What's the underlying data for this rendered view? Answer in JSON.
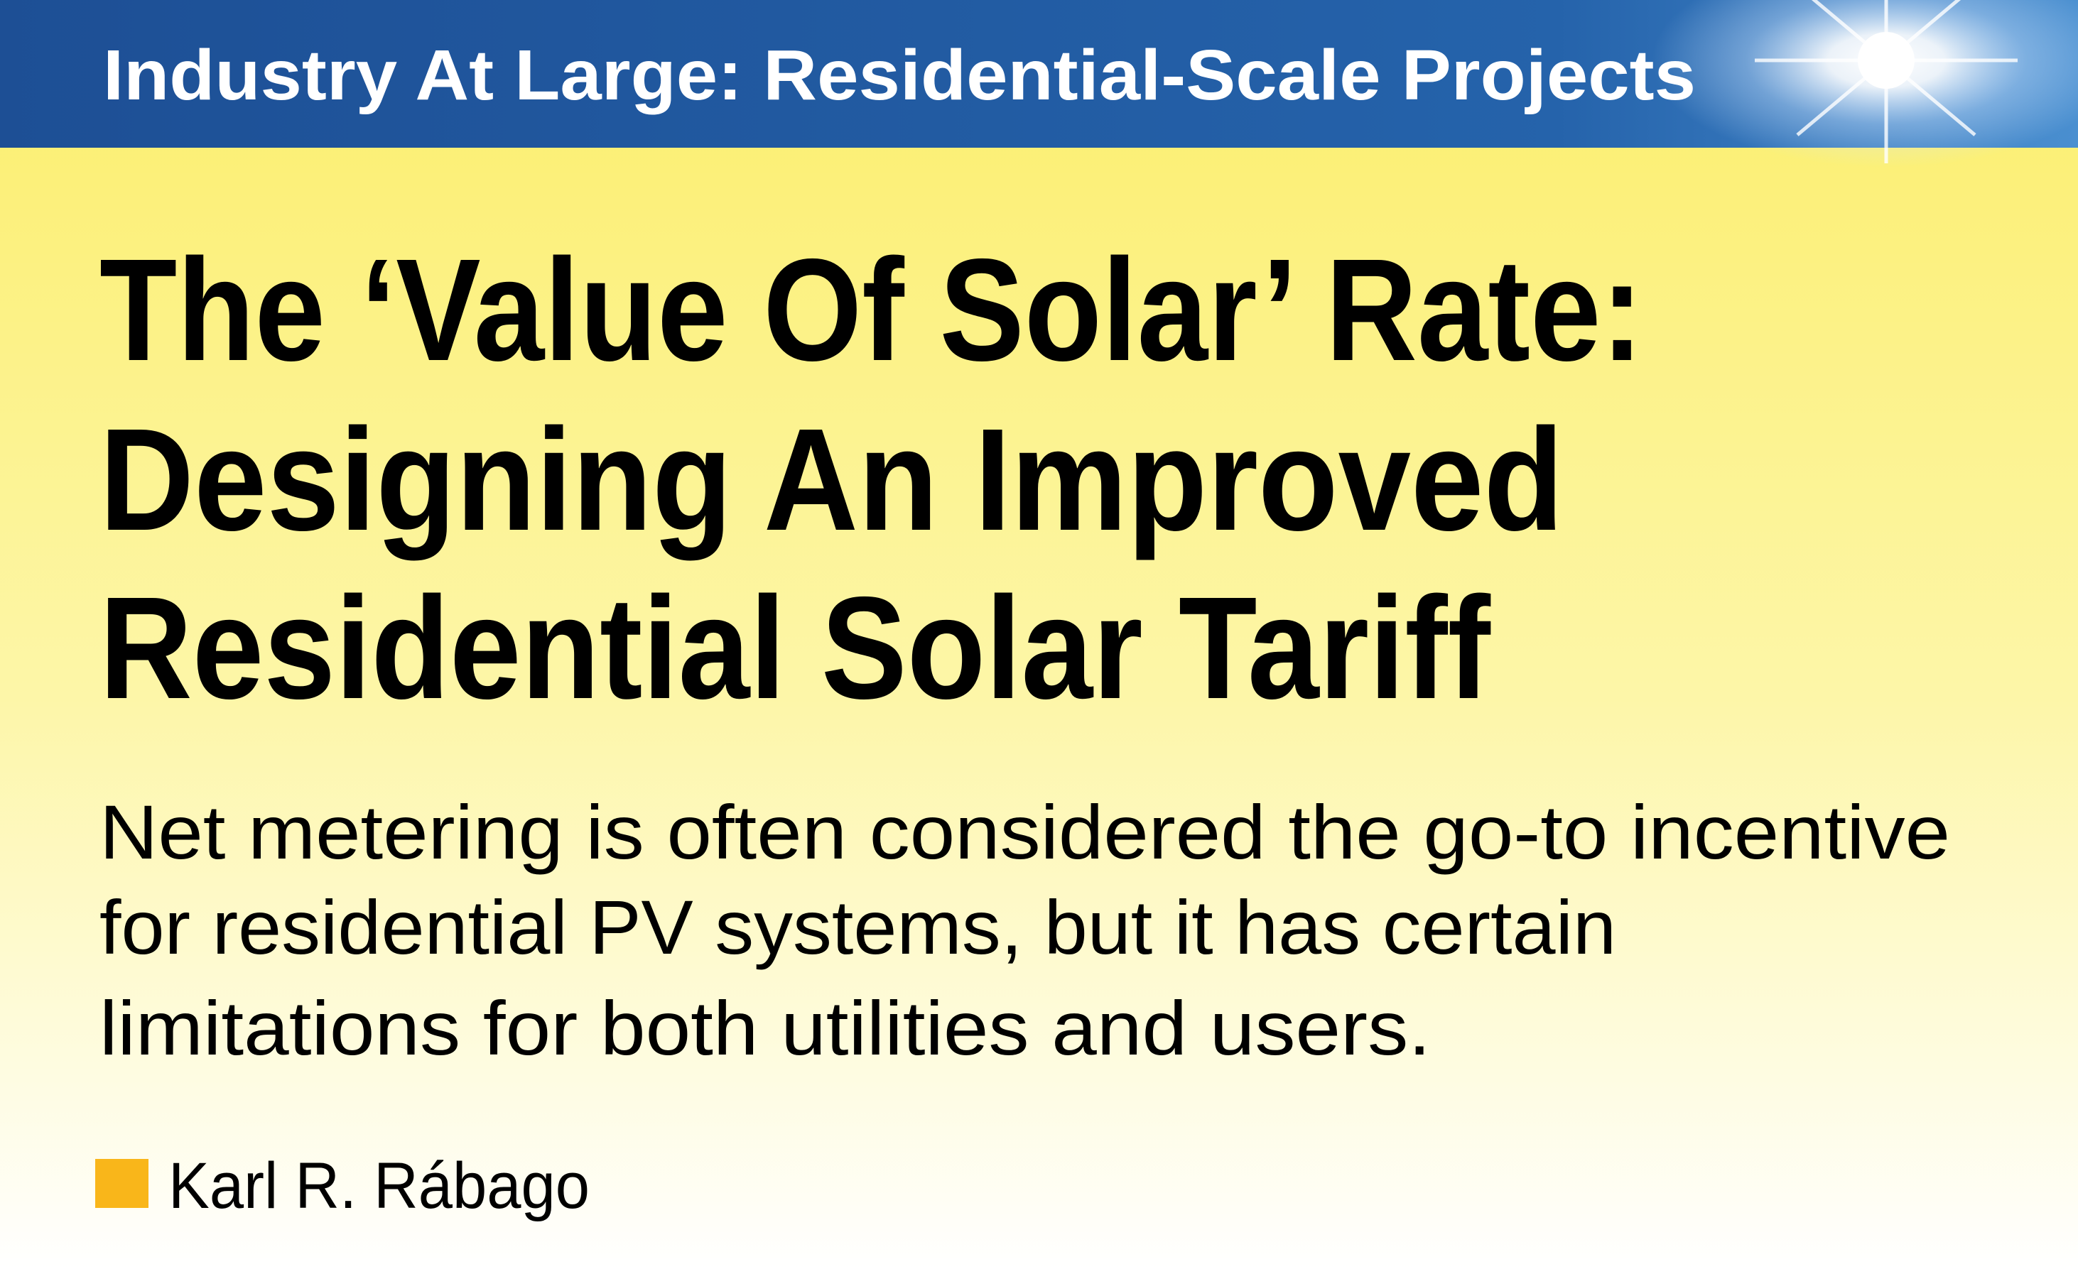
{
  "header": {
    "title": "Industry At Large: Residential-Scale Projects"
  },
  "article": {
    "title_lines": [
      "The ‘Value Of Solar’ Rate:",
      "Designing An Improved",
      "Residential Solar Tariff"
    ],
    "summary_lines": [
      "Net metering is often considered the go-to incentive",
      "for residential PV systems, but it has certain",
      "limitations for both utilities and users."
    ],
    "author": "Karl R. Rábago"
  }
}
